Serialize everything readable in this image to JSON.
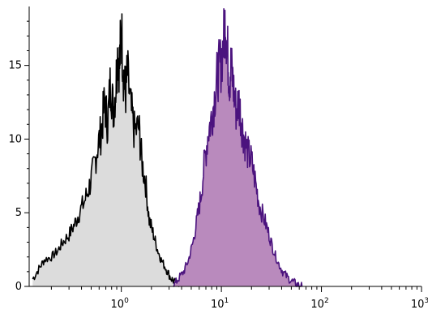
{
  "chart_data": {
    "type": "area",
    "title": "",
    "xlabel": "",
    "ylabel": "",
    "x_scale": "log",
    "xlim": [
      0.12,
      1000
    ],
    "ylim": [
      0,
      19
    ],
    "grid": false,
    "x_ticks": [
      {
        "value": 1,
        "base": "10",
        "exp": "0"
      },
      {
        "value": 10,
        "base": "10",
        "exp": "1"
      },
      {
        "value": 100,
        "base": "10",
        "exp": "2"
      },
      {
        "value": 1000,
        "base": "10",
        "exp": "3"
      }
    ],
    "y_ticks": [
      {
        "value": 0,
        "label": "0"
      },
      {
        "value": 5,
        "label": "5"
      },
      {
        "value": 10,
        "label": "10"
      },
      {
        "value": 15,
        "label": "15"
      }
    ],
    "series": [
      {
        "fill": "#dcdcdc",
        "line": "#000000",
        "x": [
          0.13,
          0.15,
          0.17,
          0.2,
          0.23,
          0.26,
          0.3,
          0.34,
          0.38,
          0.43,
          0.48,
          0.53,
          0.58,
          0.63,
          0.68,
          0.73,
          0.78,
          0.83,
          0.88,
          0.92,
          0.96,
          1.0,
          1.05,
          1.1,
          1.15,
          1.25,
          1.35,
          1.5,
          1.6,
          1.75,
          1.9,
          2.1,
          2.3,
          2.5,
          2.8,
          3.1,
          3.4,
          3.8
        ],
        "y": [
          0.5,
          1.2,
          1.8,
          2.0,
          2.4,
          3.0,
          3.5,
          4.2,
          5.0,
          5.8,
          6.8,
          8.0,
          9.5,
          10.5,
          12.5,
          11.0,
          14.0,
          12.0,
          13.5,
          16.0,
          15.0,
          17.6,
          14.5,
          13.0,
          14.5,
          12.0,
          10.5,
          10.8,
          8.5,
          7.0,
          4.5,
          3.5,
          2.5,
          1.8,
          1.2,
          0.6,
          0.3,
          0.0
        ]
      },
      {
        "fill": "#b98abd",
        "line": "#4b137e",
        "x": [
          3.3,
          3.7,
          4.2,
          4.7,
          5.2,
          5.7,
          6.2,
          6.8,
          7.4,
          8.0,
          8.6,
          9.2,
          9.8,
          10.5,
          11.0,
          11.5,
          12.0,
          12.5,
          13.2,
          14.0,
          15.0,
          16.0,
          17.0,
          18.5,
          20.0,
          22.0,
          24.0,
          27.0,
          30.0,
          33.0,
          37.0,
          41.0,
          46.0,
          52.0,
          58.0,
          64.0
        ],
        "y": [
          0.0,
          0.5,
          1.0,
          1.8,
          3.0,
          4.5,
          6.0,
          8.5,
          10.5,
          11.5,
          13.0,
          14.5,
          15.0,
          16.5,
          18.2,
          16.0,
          14.0,
          15.0,
          13.5,
          12.0,
          12.5,
          11.0,
          10.0,
          9.0,
          8.5,
          7.0,
          5.5,
          4.5,
          3.5,
          2.5,
          1.6,
          1.0,
          0.6,
          0.3,
          0.1,
          0.0
        ]
      }
    ]
  }
}
